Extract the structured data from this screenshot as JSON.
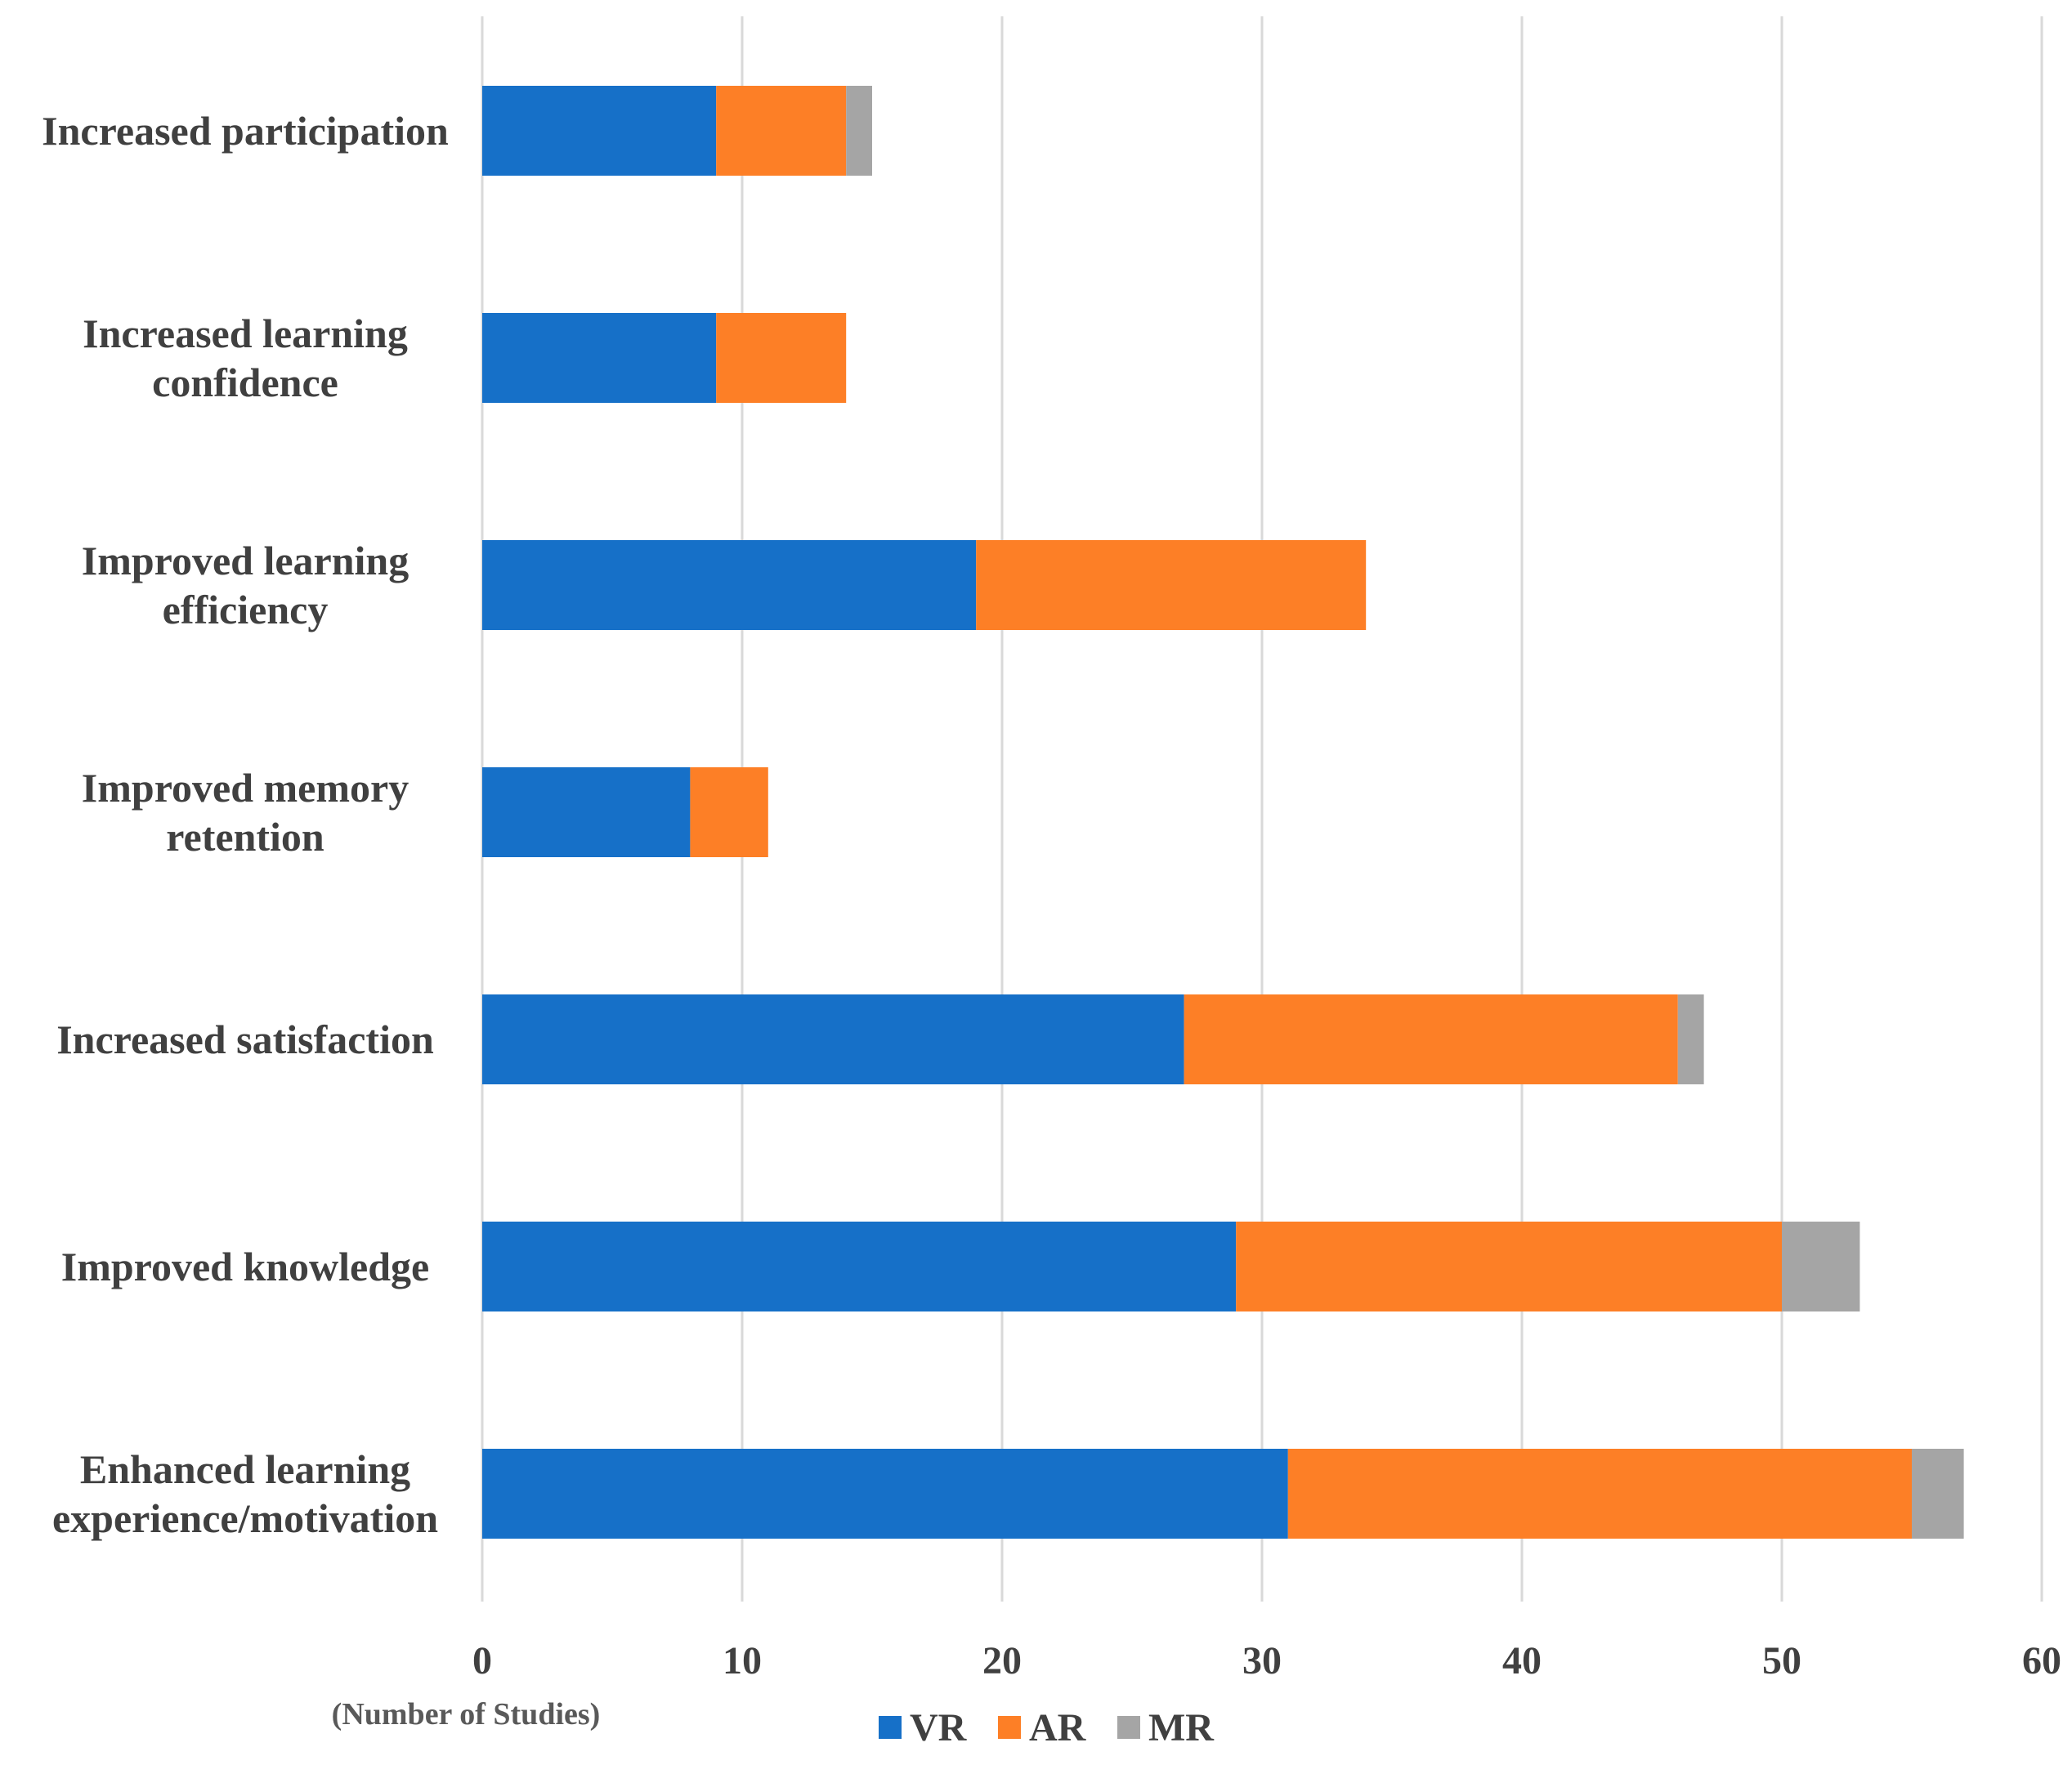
{
  "chart_data": {
    "type": "bar",
    "orientation": "horizontal",
    "stacked": true,
    "categories": [
      [
        "Increased participation"
      ],
      [
        "Increased learning",
        "confidence"
      ],
      [
        "Improved learning",
        "efficiency"
      ],
      [
        "Improved memory",
        "retention"
      ],
      [
        "Increased satisfaction"
      ],
      [
        "Improved knowledge"
      ],
      [
        "Enhanced learning",
        "experience/motivation"
      ]
    ],
    "series": [
      {
        "name": "VR",
        "color": "#1670c8",
        "values": [
          9,
          9,
          19,
          8,
          27,
          29,
          31
        ]
      },
      {
        "name": "AR",
        "color": "#fd7f26",
        "values": [
          5,
          5,
          15,
          3,
          19,
          21,
          24
        ]
      },
      {
        "name": "MR",
        "color": "#a5a5a5",
        "values": [
          1,
          0,
          0,
          0,
          1,
          3,
          2
        ]
      }
    ],
    "xlim": [
      0,
      60
    ],
    "xticks": [
      0,
      10,
      20,
      30,
      40,
      50,
      60
    ],
    "xlabel": "(Number of Studies)",
    "grid": "vertical",
    "legend_position": "bottom"
  }
}
